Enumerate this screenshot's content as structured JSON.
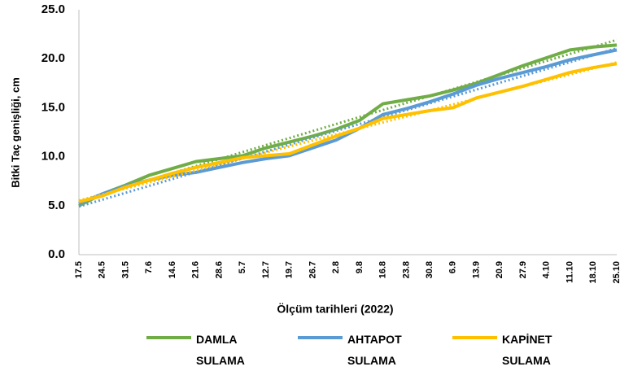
{
  "chart_data": {
    "type": "line",
    "y_label": "Bitki Taç genişliği, cm",
    "x_label": "Ölçüm tarihleri (2022)",
    "categories": [
      "17.5",
      "24.5",
      "31.5",
      "7.6",
      "14.6",
      "21.6",
      "28.6",
      "5.7",
      "12.7",
      "19.7",
      "26.7",
      "2.8",
      "9.8",
      "16.8",
      "23.8",
      "30.8",
      "6.9",
      "13.9",
      "20.9",
      "27.9",
      "4.10",
      "11.10",
      "18.10",
      "25.10"
    ],
    "series": [
      {
        "name": "DAMLA SULAMA",
        "color": "#70ad47",
        "values": [
          5.0,
          6.2,
          7.1,
          8.1,
          8.8,
          9.5,
          9.8,
          10.1,
          10.9,
          11.5,
          12.1,
          12.8,
          13.7,
          15.4,
          15.8,
          16.2,
          16.8,
          17.5,
          18.4,
          19.3,
          20.1,
          20.9,
          21.2,
          21.4
        ]
      },
      {
        "name": "AHTAPOT SULAMA",
        "color": "#5b9bd5",
        "values": [
          5.2,
          6.2,
          7.0,
          7.6,
          8.1,
          8.4,
          8.9,
          9.4,
          9.8,
          10.1,
          10.9,
          11.7,
          12.9,
          14.3,
          14.9,
          15.6,
          16.4,
          17.3,
          18.0,
          18.6,
          19.2,
          19.9,
          20.4,
          20.9
        ]
      },
      {
        "name": "KAPİNET SULAMA",
        "color": "#ffc000",
        "values": [
          5.4,
          6.0,
          6.9,
          7.6,
          8.3,
          8.9,
          9.4,
          9.9,
          10.1,
          10.3,
          11.2,
          12.1,
          12.9,
          13.9,
          14.3,
          14.7,
          15.0,
          16.0,
          16.6,
          17.2,
          17.9,
          18.6,
          19.1,
          19.5
        ]
      }
    ],
    "ylim": [
      0,
      25
    ],
    "yticks": [
      {
        "value": 0,
        "label": "0.0"
      },
      {
        "value": 5,
        "label": "5.0"
      },
      {
        "value": 10,
        "label": "10.0"
      },
      {
        "value": 15,
        "label": "15.0"
      },
      {
        "value": 20,
        "label": "20.0"
      },
      {
        "value": 25,
        "label": "25.0"
      }
    ],
    "grid": false,
    "trendline": true
  }
}
